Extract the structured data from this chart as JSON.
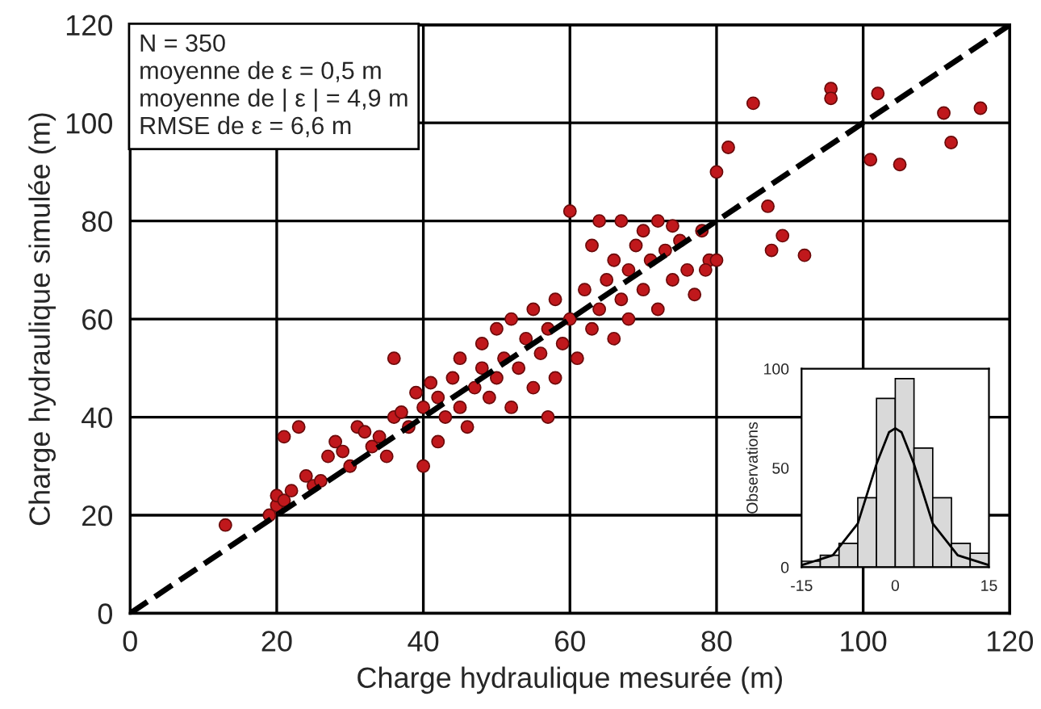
{
  "chart_data": [
    {
      "type": "scatter",
      "xlabel": "Charge hydraulique mesurée (m)",
      "ylabel": "Charge hydraulique simulée (m)",
      "xlim": [
        0,
        120
      ],
      "ylim": [
        0,
        120
      ],
      "xticks": [
        0,
        20,
        40,
        60,
        80,
        100,
        120
      ],
      "yticks": [
        0,
        20,
        40,
        60,
        80,
        100,
        120
      ],
      "grid": true,
      "legend": false,
      "annotations": [
        "N = 350",
        "moyenne de ε = 0,5 m",
        "moyenne de | ε | = 4,9 m",
        "RMSE de ε = 6,6 m"
      ],
      "series": [
        {
          "marker": "circle",
          "color": "#c0181c",
          "x": [
            13,
            19,
            20,
            20,
            21,
            22,
            21,
            23,
            24,
            25,
            26,
            27,
            28,
            29,
            30,
            31,
            32,
            33,
            34,
            35,
            36,
            36,
            37,
            38,
            39,
            40,
            40,
            41,
            42,
            42,
            43,
            44,
            45,
            45,
            46,
            47,
            48,
            48,
            49,
            50,
            50,
            51,
            52,
            52,
            53,
            54,
            55,
            55,
            56,
            57,
            57,
            58,
            58,
            59,
            60,
            60,
            61,
            62,
            63,
            63,
            64,
            64,
            65,
            66,
            66,
            67,
            67,
            68,
            68,
            69,
            70,
            70,
            71,
            72,
            72,
            73,
            74,
            74,
            75,
            76,
            77,
            78,
            79,
            80,
            85,
            95.6,
            95.6,
            102,
            111,
            116,
            112,
            101,
            105,
            81.6,
            80,
            87,
            89,
            87.5,
            92,
            78.5
          ],
          "values": [
            18,
            20,
            22,
            24,
            23,
            25,
            36,
            38,
            28,
            26,
            27,
            32,
            35,
            33,
            30,
            38,
            37,
            34,
            36,
            32,
            40,
            52,
            41,
            38,
            45,
            42,
            30,
            47,
            44,
            35,
            40,
            48,
            42,
            52,
            38,
            46,
            50,
            55,
            44,
            48,
            58,
            52,
            42,
            60,
            50,
            56,
            46,
            62,
            53,
            58,
            40,
            48,
            64,
            55,
            60,
            82,
            52,
            66,
            58,
            75,
            62,
            80,
            68,
            56,
            72,
            64,
            80,
            70,
            60,
            75,
            66,
            78,
            72,
            62,
            80,
            74,
            68,
            79,
            76,
            70,
            65,
            78,
            72,
            72,
            104,
            107,
            105,
            106,
            102,
            103,
            96,
            92.5,
            91.5,
            95,
            90,
            83,
            77,
            74,
            73,
            70
          ]
        },
        {
          "type": "line",
          "color": "#000000",
          "line_style": "dashed",
          "x": [
            0,
            120
          ],
          "values": [
            0,
            120
          ]
        }
      ]
    },
    {
      "type": "histogram",
      "ylabel": "Observations",
      "xlim": [
        -15,
        15
      ],
      "ylim": [
        0,
        100
      ],
      "xticks": [
        -15,
        0,
        15
      ],
      "yticks": [
        0,
        50,
        100
      ],
      "grid": false,
      "series": [
        {
          "color": "#d9d9d9",
          "bins": [
            -15,
            -12,
            -9,
            -6,
            -3,
            0,
            3,
            6,
            9,
            12,
            15
          ],
          "values": [
            3,
            6,
            12,
            35,
            85,
            95,
            60,
            35,
            12,
            7
          ]
        },
        {
          "type": "line",
          "color": "#000000",
          "x": [
            -15,
            -10,
            -6,
            -3,
            -1,
            0,
            1,
            3,
            6,
            10,
            15
          ],
          "values": [
            1,
            6,
            22,
            52,
            68,
            70,
            68,
            52,
            22,
            6,
            1
          ]
        }
      ]
    }
  ]
}
